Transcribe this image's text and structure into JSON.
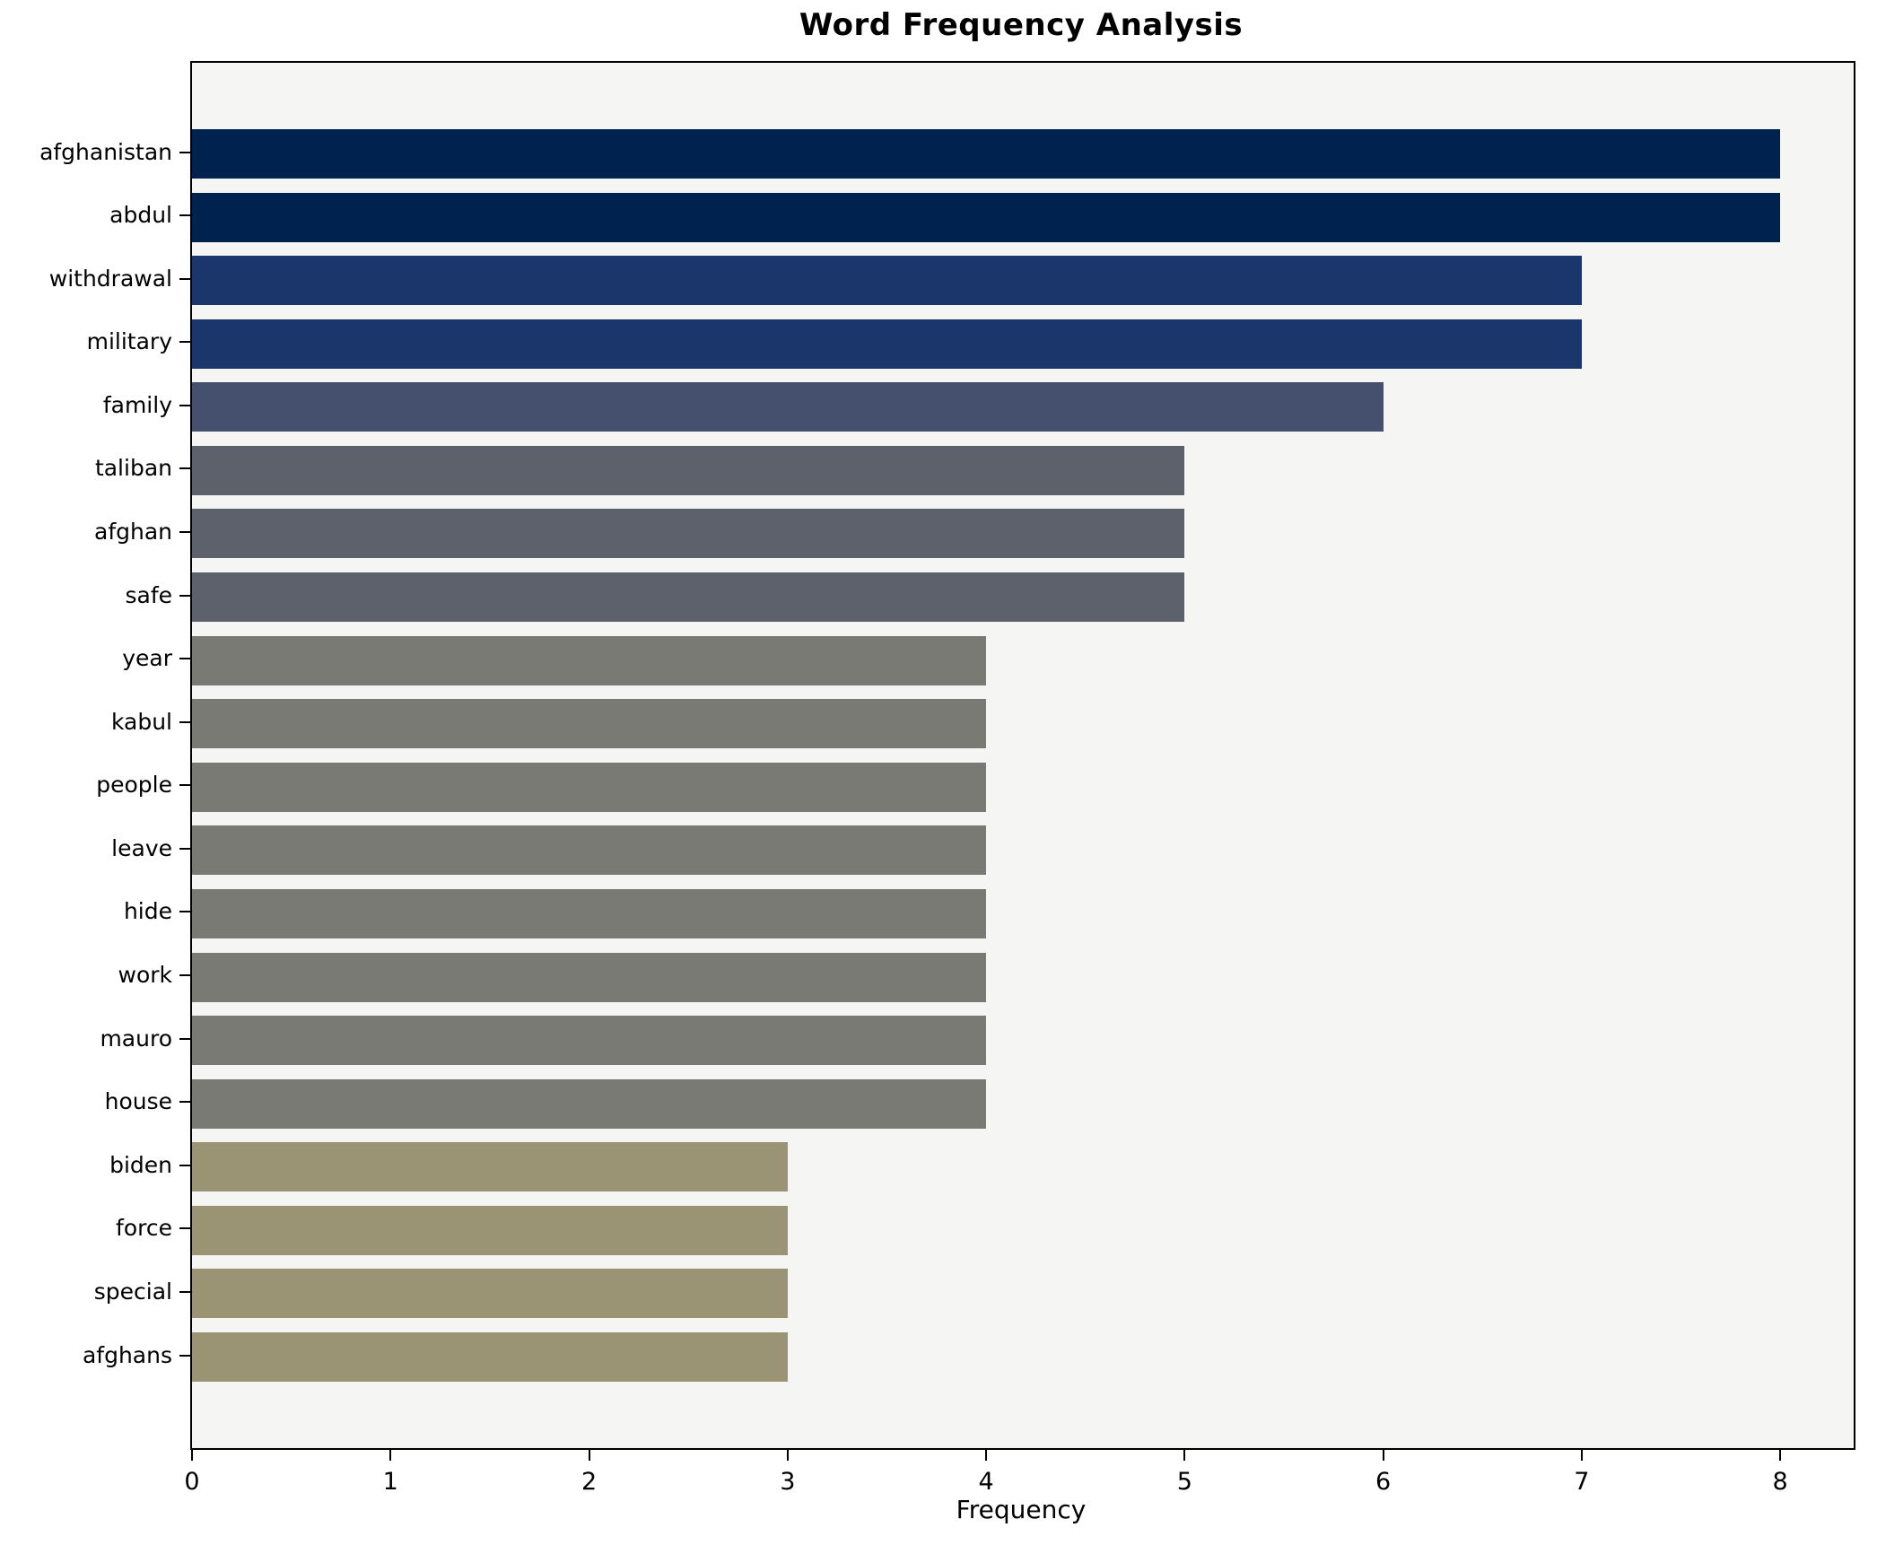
{
  "chart_data": {
    "type": "bar",
    "orientation": "horizontal",
    "title": "Word Frequency Analysis",
    "xlabel": "Frequency",
    "ylabel": "",
    "categories": [
      "afghanistan",
      "abdul",
      "withdrawal",
      "military",
      "family",
      "taliban",
      "afghan",
      "safe",
      "year",
      "kabul",
      "people",
      "leave",
      "hide",
      "work",
      "mauro",
      "house",
      "biden",
      "force",
      "special",
      "afghans"
    ],
    "values": [
      8,
      8,
      7,
      7,
      6,
      5,
      5,
      5,
      4,
      4,
      4,
      4,
      4,
      4,
      4,
      4,
      3,
      3,
      3,
      3
    ],
    "bar_colors": [
      "#00224e",
      "#00224e",
      "#1a366b",
      "#1a366b",
      "#454f6e",
      "#5c616c",
      "#5c616c",
      "#5c616c",
      "#7a7a75",
      "#7a7a75",
      "#7a7a75",
      "#7a7a75",
      "#7a7a75",
      "#7a7a75",
      "#7a7a75",
      "#7a7a75",
      "#9a9374",
      "#9a9374",
      "#9a9374",
      "#9a9374"
    ],
    "xlim": [
      0,
      8.37
    ],
    "xticks": [
      0,
      1,
      2,
      3,
      4,
      5,
      6,
      7,
      8
    ],
    "grid": false,
    "legend_position": "none",
    "plot_bg": "#f5f5f3",
    "figure_bg": "#ffffff",
    "axis_color": "#000000"
  }
}
